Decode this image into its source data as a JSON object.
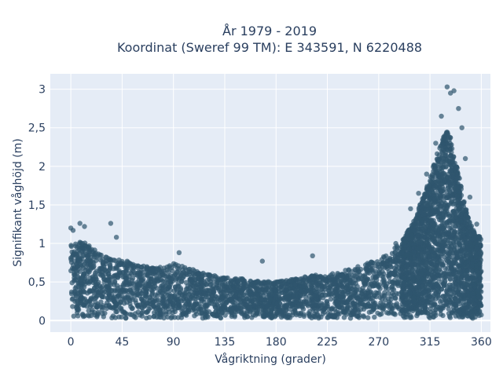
{
  "chart_data": {
    "type": "scatter",
    "title_line1": "År 1979 - 2019",
    "title_line2": "Koordinat (Sweref 99 TM): E 343591, N 6220488",
    "xlabel": "Vågriktning (grader)",
    "ylabel": "Signifikant våghöjd (m)",
    "xlim": [
      -18,
      368
    ],
    "ylim": [
      -0.15,
      3.2
    ],
    "xticks": [
      0,
      45,
      90,
      135,
      180,
      225,
      270,
      315,
      360
    ],
    "xtick_labels": [
      "0",
      "45",
      "90",
      "135",
      "180",
      "225",
      "270",
      "315",
      "360"
    ],
    "yticks": [
      0,
      0.5,
      1,
      1.5,
      2,
      2.5,
      3
    ],
    "ytick_labels": [
      "0",
      "0,5",
      "1",
      "1,5",
      "2",
      "2,5",
      "3"
    ],
    "grid": true,
    "plot_bg": "#e5ecf6",
    "marker_color": "#2f566e",
    "upper_envelope": {
      "x": [
        0,
        10,
        20,
        30,
        40,
        50,
        60,
        70,
        80,
        90,
        100,
        110,
        120,
        130,
        140,
        150,
        160,
        170,
        180,
        190,
        200,
        210,
        220,
        230,
        240,
        250,
        260,
        270,
        280,
        290,
        300,
        305,
        310,
        315,
        320,
        325,
        330,
        335,
        340,
        345,
        350,
        355,
        360
      ],
      "y": [
        1.0,
        1.05,
        0.95,
        0.85,
        0.8,
        0.78,
        0.72,
        0.7,
        0.7,
        0.75,
        0.7,
        0.65,
        0.6,
        0.58,
        0.55,
        0.55,
        0.52,
        0.5,
        0.5,
        0.52,
        0.55,
        0.58,
        0.6,
        0.62,
        0.65,
        0.7,
        0.75,
        0.8,
        0.9,
        1.05,
        1.3,
        1.5,
        1.7,
        1.9,
        2.2,
        2.4,
        2.6,
        2.4,
        2.0,
        1.6,
        1.3,
        1.15,
        1.1
      ]
    },
    "outliers": [
      {
        "x": 0,
        "y": 1.2
      },
      {
        "x": 2,
        "y": 1.17
      },
      {
        "x": 8,
        "y": 1.26
      },
      {
        "x": 12,
        "y": 1.22
      },
      {
        "x": 35,
        "y": 1.26
      },
      {
        "x": 40,
        "y": 1.08
      },
      {
        "x": 95,
        "y": 0.88
      },
      {
        "x": 168,
        "y": 0.77
      },
      {
        "x": 212,
        "y": 0.84
      },
      {
        "x": 285,
        "y": 1.0
      },
      {
        "x": 298,
        "y": 1.45
      },
      {
        "x": 305,
        "y": 1.65
      },
      {
        "x": 312,
        "y": 1.9
      },
      {
        "x": 320,
        "y": 2.3
      },
      {
        "x": 325,
        "y": 2.65
      },
      {
        "x": 330,
        "y": 3.03
      },
      {
        "x": 333,
        "y": 2.95
      },
      {
        "x": 336,
        "y": 2.98
      },
      {
        "x": 340,
        "y": 2.75
      },
      {
        "x": 343,
        "y": 2.5
      },
      {
        "x": 346,
        "y": 2.1
      },
      {
        "x": 350,
        "y": 1.6
      },
      {
        "x": 356,
        "y": 1.25
      }
    ]
  }
}
